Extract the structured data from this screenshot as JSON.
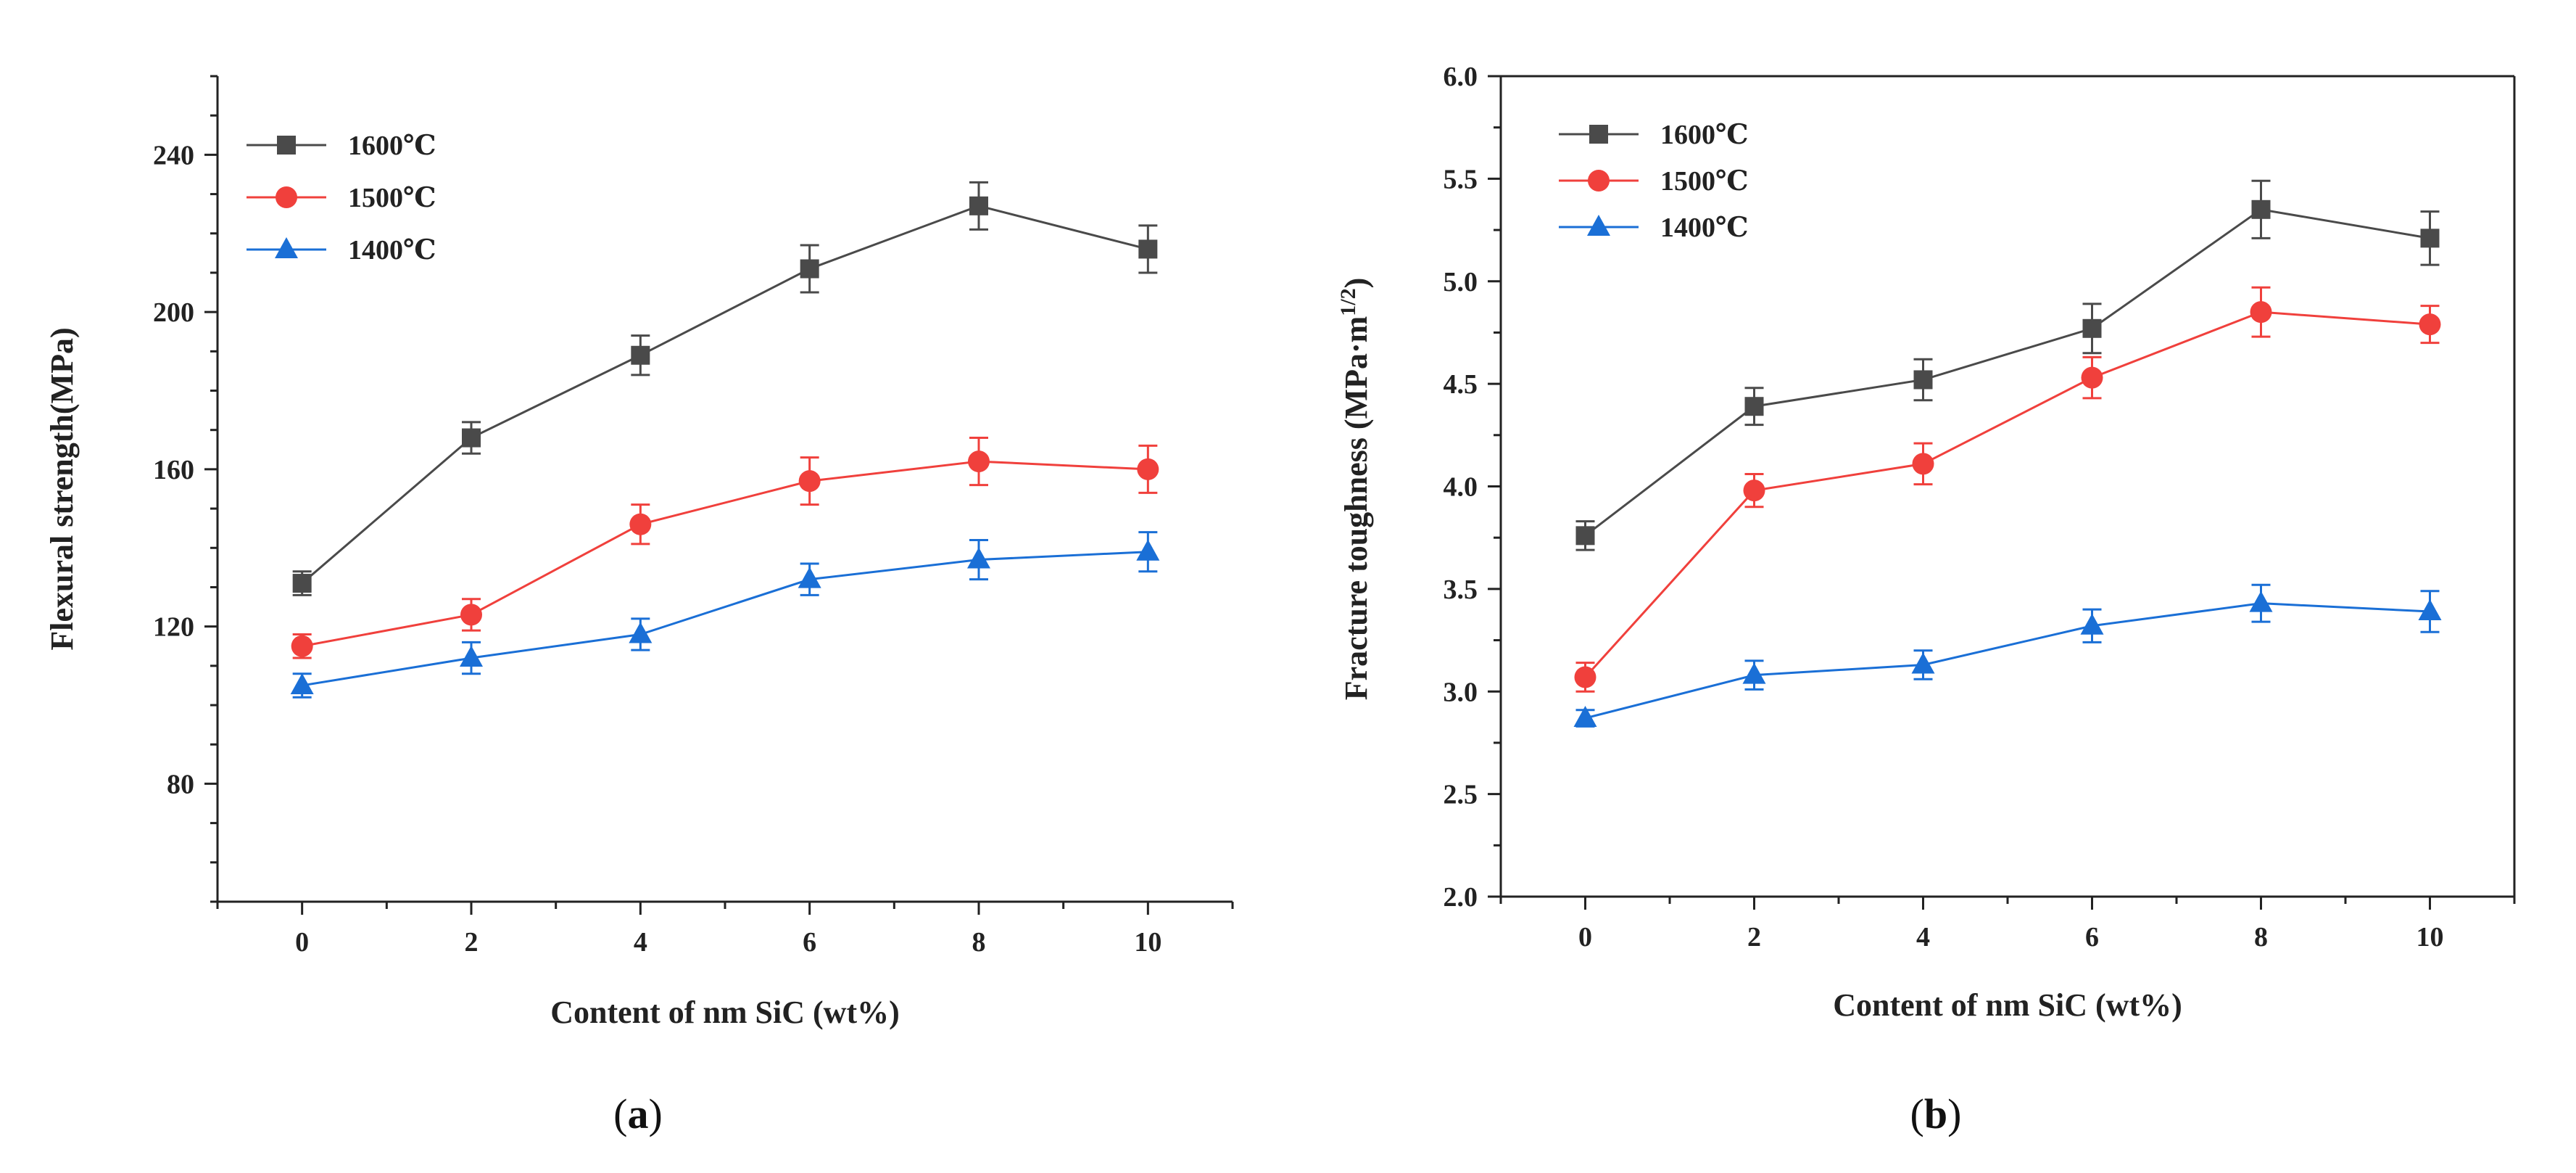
{
  "chart_data": [
    {
      "type": "line",
      "panel_label": "a",
      "xlabel": "Content of nm SiC (wt%)",
      "ylabel": "Flexural strength(MPa)",
      "x": [
        0,
        2,
        4,
        6,
        8,
        10
      ],
      "x_ticks": [
        "0",
        "2",
        "4",
        "6",
        "8",
        "10"
      ],
      "xlim": [
        -1,
        11
      ],
      "y_ticks": [
        "80",
        "120",
        "160",
        "200",
        "240"
      ],
      "y_tick_values": [
        80,
        120,
        160,
        200,
        240
      ],
      "ylim": [
        50,
        260
      ],
      "grid": false,
      "legend_position": "top-left",
      "series": [
        {
          "name": "1600℃",
          "color": "#4a4a4a",
          "marker": "square",
          "values": [
            131,
            168,
            189,
            211,
            227,
            216
          ],
          "errors": [
            3,
            4,
            5,
            6,
            6,
            6
          ]
        },
        {
          "name": "1500℃",
          "color": "#f0403c",
          "marker": "circle",
          "values": [
            115,
            123,
            146,
            157,
            162,
            160
          ],
          "errors": [
            3,
            4,
            5,
            6,
            6,
            6
          ]
        },
        {
          "name": "1400℃",
          "color": "#1a6fd6",
          "marker": "triangle",
          "values": [
            105,
            112,
            118,
            132,
            137,
            139
          ],
          "errors": [
            3,
            4,
            4,
            4,
            5,
            5
          ]
        }
      ]
    },
    {
      "type": "line",
      "panel_label": "b",
      "xlabel": "Content of nm SiC (wt%)",
      "ylabel": "Fracture toughness (MPa·m",
      "ylabel_sup": "1/2",
      "ylabel_end": ")",
      "x": [
        0,
        2,
        4,
        6,
        8,
        10
      ],
      "x_ticks": [
        "0",
        "2",
        "4",
        "6",
        "8",
        "10"
      ],
      "xlim": [
        -1,
        11
      ],
      "y_ticks": [
        "2.0",
        "2.5",
        "3.0",
        "3.5",
        "4.0",
        "4.5",
        "5.0",
        "5.5",
        "6.0"
      ],
      "y_tick_values": [
        2.0,
        2.5,
        3.0,
        3.5,
        4.0,
        4.5,
        5.0,
        5.5,
        6.0
      ],
      "ylim": [
        2.0,
        6.0
      ],
      "grid": false,
      "legend_position": "top-left",
      "series": [
        {
          "name": "1600℃",
          "color": "#4a4a4a",
          "marker": "square",
          "values": [
            3.76,
            4.39,
            4.52,
            4.77,
            5.35,
            5.21
          ],
          "errors": [
            0.07,
            0.09,
            0.1,
            0.12,
            0.14,
            0.13
          ]
        },
        {
          "name": "1500℃",
          "color": "#f0403c",
          "marker": "circle",
          "values": [
            3.07,
            3.98,
            4.11,
            4.53,
            4.85,
            4.79
          ],
          "errors": [
            0.07,
            0.08,
            0.1,
            0.1,
            0.12,
            0.09
          ]
        },
        {
          "name": "1400℃",
          "color": "#1a6fd6",
          "marker": "triangle",
          "values": [
            2.87,
            3.08,
            3.13,
            3.32,
            3.43,
            3.39
          ],
          "errors": [
            0.04,
            0.07,
            0.07,
            0.08,
            0.09,
            0.1
          ]
        }
      ]
    }
  ]
}
